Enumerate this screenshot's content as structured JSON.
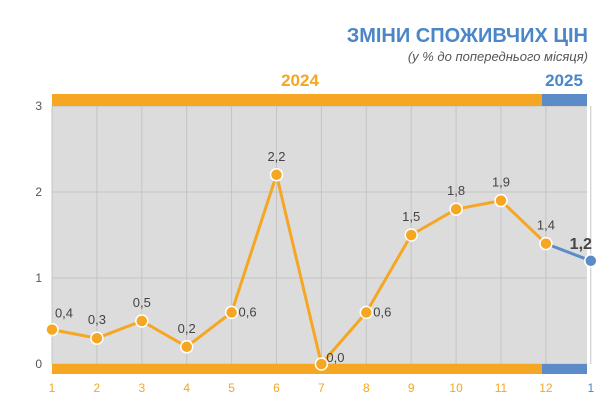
{
  "chart_data": {
    "type": "line",
    "title": "ЗМІНИ СПОЖИВЧИХ ЦІН",
    "subtitle": "(у % до попереднього місяця)",
    "year_labels": [
      "2024",
      "2025"
    ],
    "x_tick_labels": [
      "1",
      "2",
      "3",
      "4",
      "5",
      "6",
      "7",
      "8",
      "9",
      "10",
      "11",
      "12",
      "1"
    ],
    "y_tick_labels": [
      "0",
      "1",
      "2",
      "3"
    ],
    "ylim": [
      0,
      3
    ],
    "grid": true,
    "series": [
      {
        "year": "2024",
        "color": "#f5a623",
        "values": [
          0.4,
          0.3,
          0.5,
          0.2,
          0.6,
          2.2,
          0.0,
          0.6,
          1.5,
          1.8,
          1.9,
          1.4
        ],
        "labels": [
          "0,4",
          "0,3",
          "0,5",
          "0,2",
          "0,6",
          "2,2",
          "0,0",
          "0,6",
          "1,5",
          "1,8",
          "1,9",
          "1,4"
        ]
      },
      {
        "year": "2025",
        "color": "#5b8cc8",
        "values": [
          1.2
        ],
        "labels": [
          "1,2"
        ]
      }
    ],
    "colors": {
      "title": "#4a86c8",
      "subtitle": "#555555",
      "year_2024": "#f5a623",
      "year_2025": "#4a86c8",
      "plot_background": "#dcdcdc",
      "grid": "#c4c4c4",
      "axis_text": "#555555",
      "tick_x_2024": "#f5a623",
      "tick_x_2025": "#4a86c8"
    }
  }
}
